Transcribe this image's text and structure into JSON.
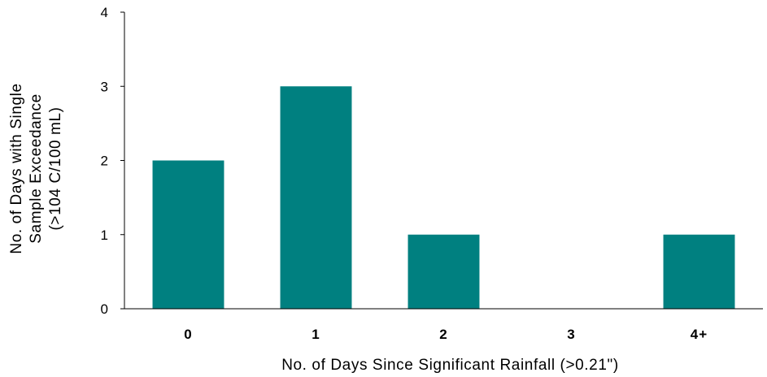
{
  "chart_data": {
    "type": "bar",
    "categories": [
      "0",
      "1",
      "2",
      "3",
      "4+"
    ],
    "values": [
      2,
      3,
      1,
      0,
      1
    ],
    "xlabel": "No. of Days Since Significant Rainfall (>0.21\")",
    "ylabel_lines": [
      "No. of Days with Single",
      "Sample Exceedance",
      "(>104 C/100 mL)"
    ],
    "ylim": [
      0,
      4
    ],
    "yticks": [
      0,
      1,
      2,
      3,
      4
    ],
    "bar_color": "#008080",
    "grid": false,
    "legend": "none"
  }
}
